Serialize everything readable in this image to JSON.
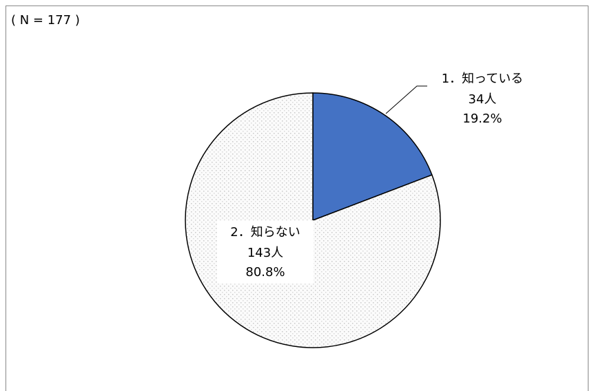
{
  "chart_data": {
    "type": "pie",
    "note": "( N = 177 )",
    "categories": [
      "1．知っている",
      "2．知らない"
    ],
    "values": [
      19.2,
      80.8
    ],
    "value_labels": [
      "19.2%",
      "80.8%"
    ],
    "counts": [
      34,
      143
    ],
    "count_labels": [
      "34人",
      "143人"
    ],
    "colors": [
      "#4472c4",
      "pattern-dots"
    ]
  }
}
